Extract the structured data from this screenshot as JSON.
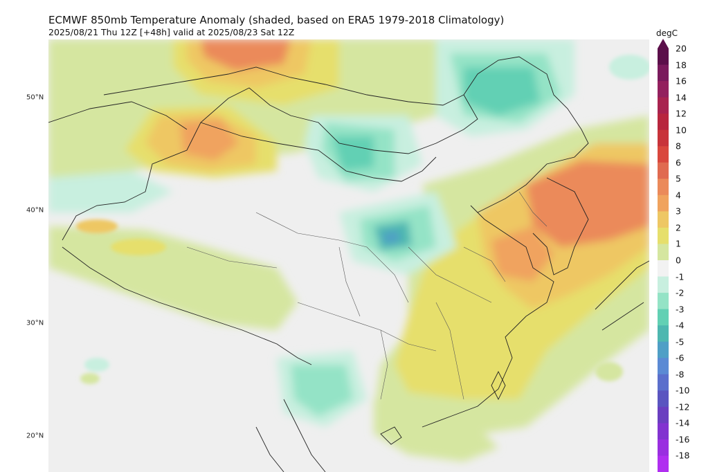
{
  "header": {
    "title": "ECMWF 850mb Temperature Anomaly (shaded, based on ERA5 1979-2018 Climatology)",
    "subtitle": "2025/08/21 Thu 12Z [+48h] valid at 2025/08/23 Sat 12Z"
  },
  "map": {
    "latitude_labels": [
      "50°N",
      "40°N",
      "30°N",
      "20°N"
    ]
  },
  "colorbar": {
    "unit": "degC",
    "ticks": [
      "20",
      "18",
      "16",
      "14",
      "12",
      "10",
      "8",
      "6",
      "5",
      "4",
      "3",
      "2",
      "1",
      "0",
      "-1",
      "-2",
      "-3",
      "-4",
      "-5",
      "-6",
      "-8",
      "-10",
      "-12",
      "-14",
      "-16",
      "-18"
    ],
    "colors": [
      "#5b0f4a",
      "#7a1a5c",
      "#93205e",
      "#a8234f",
      "#b8263e",
      "#c8333a",
      "#d9473d",
      "#e06a50",
      "#eb8a5a",
      "#f0a35e",
      "#eec764",
      "#e6df6c",
      "#d5e6a0",
      "#f2f2f2",
      "#c8efdf",
      "#94e3c6",
      "#62d0b4",
      "#4eb7b0",
      "#4f9fc6",
      "#5b8ad4",
      "#5b6fcc",
      "#5a55c0",
      "#6a3fc0",
      "#8233d0",
      "#9a2fe0",
      "#b02ff0"
    ]
  },
  "anomaly_colors": {
    "warm_1": "#d5e6a0",
    "warm_2": "#e6df6c",
    "warm_3": "#eec764",
    "warm_4": "#f0a35e",
    "warm_5": "#eb8a5a",
    "warm_6": "#e06a50",
    "cool_1": "#c8efdf",
    "cool_2": "#94e3c6",
    "cool_3": "#62d0b4",
    "cool_4": "#4eb7b0",
    "cool_5": "#4f9fc6",
    "border_color": "#222222"
  }
}
